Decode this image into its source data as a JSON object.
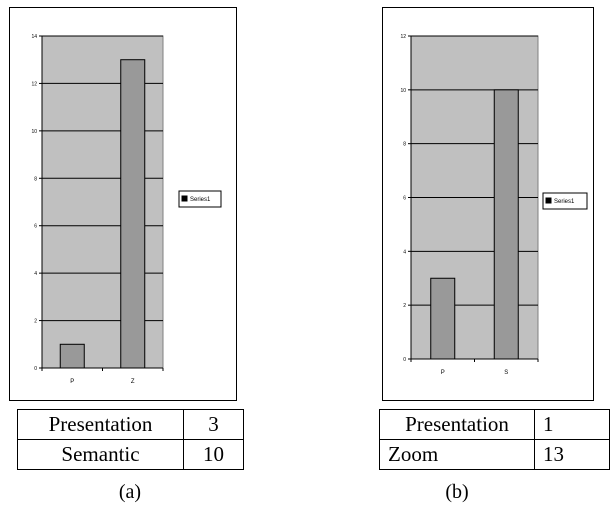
{
  "chart_data": [
    {
      "type": "bar",
      "categories": [
        "P",
        "Z"
      ],
      "values": [
        1,
        13
      ],
      "ylim": [
        0,
        14
      ],
      "yticks": [
        0,
        2,
        4,
        6,
        8,
        10,
        12,
        14
      ],
      "legend": "Series1",
      "legend_position": "right",
      "grid": true,
      "bar_color": "#999999",
      "plot_bg": "#c0c0c0"
    },
    {
      "type": "bar",
      "categories": [
        "P",
        "S"
      ],
      "values": [
        3,
        10
      ],
      "ylim": [
        0,
        12
      ],
      "yticks": [
        0,
        2,
        4,
        6,
        8,
        10,
        12
      ],
      "legend": "Series1",
      "legend_position": "right",
      "grid": true,
      "bar_color": "#999999",
      "plot_bg": "#c0c0c0"
    }
  ],
  "tables": [
    {
      "rows": [
        {
          "label": "Presentation",
          "value": "3"
        },
        {
          "label": "Semantic",
          "value": "10"
        }
      ]
    },
    {
      "rows": [
        {
          "label": "Presentation",
          "value": "1"
        },
        {
          "label": "Zoom",
          "value": "13"
        }
      ]
    }
  ],
  "captions": [
    "(a)",
    "(b)"
  ]
}
